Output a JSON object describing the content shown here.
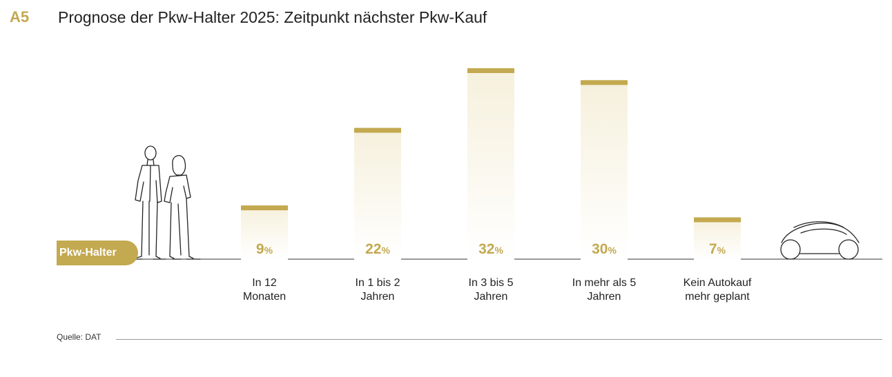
{
  "header": {
    "figure_id": "A5",
    "title": "Prognose der Pkw-Halter 2025: Zeitpunkt nächster Pkw-Kauf"
  },
  "holder_label": "Pkw-Halter",
  "source": "Quelle: DAT",
  "colors": {
    "accent": "#c3a94f",
    "bar_fill_top": "#f6f0dc",
    "bar_fill_bottom": "#ffffff"
  },
  "icons": [
    "people-icon",
    "car-icon"
  ],
  "chart_data": {
    "type": "bar",
    "unit": "%",
    "categories": [
      [
        "In 12",
        "Monaten"
      ],
      [
        "In 1 bis 2",
        "Jahren"
      ],
      [
        "In 3 bis 5",
        "Jahren"
      ],
      [
        "In mehr als 5",
        "Jahren"
      ],
      [
        "Kein Autokauf",
        "mehr geplant"
      ]
    ],
    "values": [
      9,
      22,
      32,
      30,
      7
    ],
    "ylim": [
      0,
      32
    ],
    "grid": false,
    "legend": "none"
  }
}
